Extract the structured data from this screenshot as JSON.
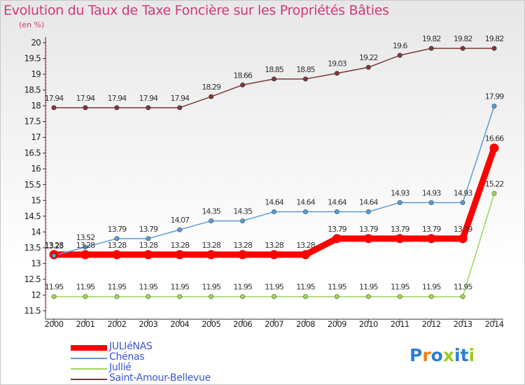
{
  "header": {
    "title": "Evolution du Taux de Taxe Foncière sur les Propriétés Bâties",
    "unit": "(en %)"
  },
  "logo": {
    "text": "Proxiti",
    "letter_colors": [
      "#2c7fd3",
      "#e8821c",
      "#2c7fd3",
      "#9ccb1c",
      "#2c7fd3",
      "#2c7fd3",
      "#9ccb1c"
    ]
  },
  "chart_data": {
    "type": "line",
    "x": [
      "2000",
      "2001",
      "2002",
      "2003",
      "2004",
      "2005",
      "2006",
      "2007",
      "2008",
      "2009",
      "2010",
      "2011",
      "2012",
      "2013",
      "2014"
    ],
    "ylim": [
      11.5,
      20
    ],
    "yticks": [
      11.5,
      12,
      12.5,
      13,
      13.5,
      14,
      14.5,
      15,
      15.5,
      16,
      16.5,
      17,
      17.5,
      18,
      18.5,
      19,
      19.5,
      20
    ],
    "grid": false,
    "legend_position": "bottom-left",
    "series": [
      {
        "name": "JULIéNAS",
        "color": "#ff0000",
        "emphasis": true,
        "values": [
          13.28,
          13.28,
          13.28,
          13.28,
          13.28,
          13.28,
          13.28,
          13.28,
          13.28,
          13.79,
          13.79,
          13.79,
          13.79,
          13.79,
          16.66
        ],
        "labels": [
          "13.28",
          "13.28",
          "13.28",
          "13.28",
          "13.28",
          "13.28",
          "13.28",
          "13.28",
          "13.28",
          "13.79",
          "13.79",
          "13.79",
          "13.79",
          "13.79",
          "16.66"
        ]
      },
      {
        "name": "Chénas",
        "color": "#5b9bd5",
        "values": [
          13.25,
          13.52,
          13.79,
          13.79,
          14.07,
          14.35,
          14.35,
          14.64,
          14.64,
          14.64,
          14.64,
          14.93,
          14.93,
          14.93,
          17.99
        ],
        "labels": [
          "13.25",
          "13.52",
          "13.79",
          "13.79",
          "14.07",
          "14.35",
          "14.35",
          "14.64",
          "14.64",
          "14.64",
          "14.64",
          "14.93",
          "14.93",
          "14.93",
          "17.99"
        ]
      },
      {
        "name": "Jullié",
        "color": "#9dd65a",
        "values": [
          11.95,
          11.95,
          11.95,
          11.95,
          11.95,
          11.95,
          11.95,
          11.95,
          11.95,
          11.95,
          11.95,
          11.95,
          11.95,
          11.95,
          15.22
        ],
        "labels": [
          "11.95",
          "11.95",
          "11.95",
          "11.95",
          "11.95",
          "11.95",
          "11.95",
          "11.95",
          "11.95",
          "11.95",
          "11.95",
          "11.95",
          "11.95",
          "11.95",
          "15.22"
        ]
      },
      {
        "name": "Saint-Amour-Bellevue",
        "color": "#7a3a3a",
        "values": [
          17.94,
          17.94,
          17.94,
          17.94,
          17.94,
          18.29,
          18.66,
          18.85,
          18.85,
          19.03,
          19.22,
          19.6,
          19.82,
          19.82,
          19.82
        ],
        "labels": [
          "17.94",
          "17.94",
          "17.94",
          "17.94",
          "17.94",
          "18.29",
          "18.66",
          "18.85",
          "18.85",
          "19.03",
          "19.22",
          "19.6",
          "19.82",
          "19.82",
          "19.82"
        ]
      }
    ]
  }
}
